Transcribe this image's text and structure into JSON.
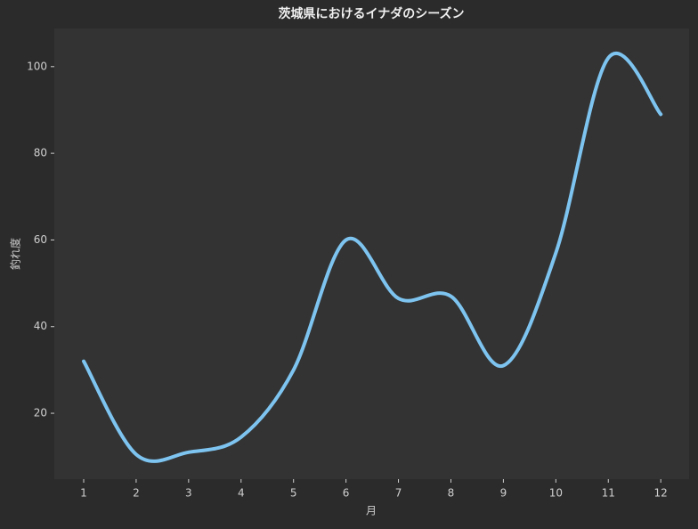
{
  "chart_data": {
    "type": "line",
    "title": "茨城県におけるイナダのシーズン",
    "x_label": "月",
    "y_label": "釣れ度",
    "x": [
      1,
      2,
      3,
      4,
      5,
      6,
      7,
      8,
      9,
      10,
      11,
      12
    ],
    "series": [
      {
        "name": "釣れ度",
        "color": "#7ec4f0",
        "values": [
          32,
          10.5,
          11,
          14.5,
          30,
          60,
          46.5,
          47,
          31,
          57,
          102,
          89
        ]
      }
    ],
    "xlim": [
      0.44,
      12.54
    ],
    "xticks": [
      1,
      2,
      3,
      4,
      5,
      6,
      7,
      8,
      9,
      10,
      11,
      12
    ],
    "ylim": [
      4.8,
      108.8
    ],
    "yticks": [
      20,
      40,
      60,
      80,
      100
    ],
    "grid": false,
    "smooth": true
  }
}
